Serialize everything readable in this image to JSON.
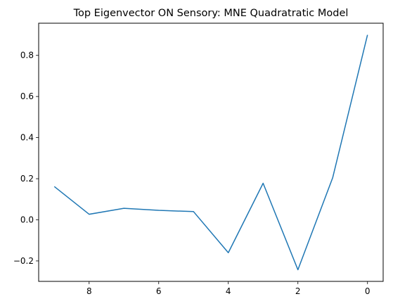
{
  "chart_data": {
    "type": "line",
    "title": "Top Eigenvector ON Sensory: MNE Quadratratic Model",
    "xlabel": "",
    "ylabel": "",
    "x": [
      9,
      8,
      7,
      6,
      5,
      4,
      3,
      2,
      1,
      0
    ],
    "series": [
      {
        "values": [
          0.162,
          0.027,
          0.056,
          0.046,
          0.04,
          -0.16,
          0.178,
          -0.243,
          0.205,
          0.9
        ]
      }
    ],
    "xlim": [
      9.45,
      -0.45
    ],
    "ylim": [
      -0.2995,
      0.9565
    ],
    "x_ticks": [
      {
        "value": 8,
        "label": "8"
      },
      {
        "value": 6,
        "label": "6"
      },
      {
        "value": 4,
        "label": "4"
      },
      {
        "value": 2,
        "label": "2"
      },
      {
        "value": 0,
        "label": "0"
      }
    ],
    "y_ticks": [
      {
        "value": -0.2,
        "label": "−0.2"
      },
      {
        "value": 0.0,
        "label": "0.0"
      },
      {
        "value": 0.2,
        "label": "0.2"
      },
      {
        "value": 0.4,
        "label": "0.4"
      },
      {
        "value": 0.6,
        "label": "0.6"
      },
      {
        "value": 0.8,
        "label": "0.8"
      }
    ],
    "grid": false,
    "line_color": "#1f77b4"
  }
}
